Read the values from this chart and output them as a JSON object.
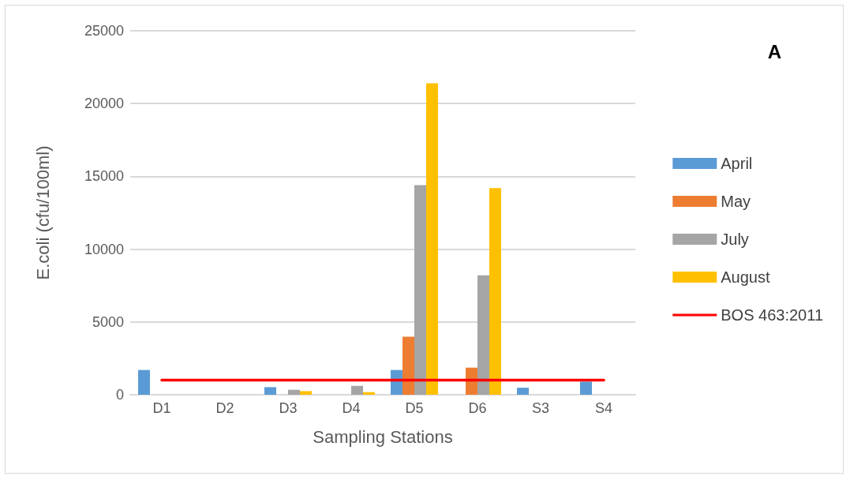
{
  "chart_data": {
    "type": "bar",
    "xlabel": "Sampling Stations",
    "ylabel": "E.coli (cfu/100ml)",
    "categories": [
      "D1",
      "D2",
      "D3",
      "D4",
      "D5",
      "D6",
      "S3",
      "S4"
    ],
    "series": [
      {
        "name": "April",
        "color": "#5b9bd5",
        "values": [
          1700,
          null,
          520,
          null,
          1700,
          null,
          480,
          900
        ]
      },
      {
        "name": "May",
        "color": "#ed7d31",
        "values": [
          null,
          null,
          null,
          null,
          3980,
          1860,
          null,
          null
        ]
      },
      {
        "name": "July",
        "color": "#a5a5a5",
        "values": [
          null,
          null,
          340,
          610,
          14400,
          8200,
          null,
          null
        ]
      },
      {
        "name": "August",
        "color": "#ffc000",
        "values": [
          null,
          null,
          250,
          180,
          21400,
          14200,
          null,
          null
        ]
      },
      {
        "name": "BOS 463:2011",
        "type": "line",
        "color": "#ff0000",
        "values": [
          1000,
          1000,
          1000,
          1000,
          1000,
          1000,
          1000,
          1000
        ]
      }
    ],
    "ylim": [
      0,
      25000
    ],
    "yticks": [
      0,
      5000,
      10000,
      15000,
      20000,
      25000
    ],
    "annotations": [
      "A"
    ],
    "grid": "y",
    "legend": "right",
    "marker": "none"
  }
}
